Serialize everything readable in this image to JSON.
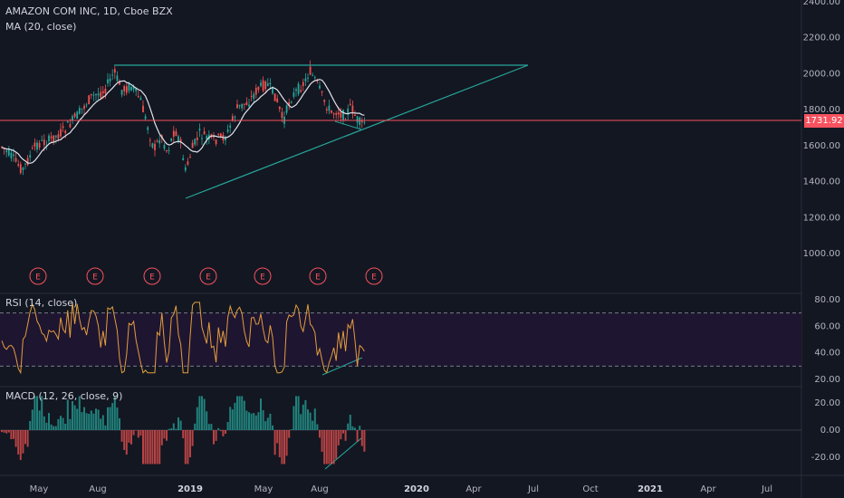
{
  "header": {
    "symbol_title": "AMAZON COM INC, 1D, Cboe BZX",
    "ma_label": "MA (20, close)"
  },
  "price_pane": {
    "y_ticks": [
      "2400.00",
      "2200.00",
      "2000.00",
      "1800.00",
      "1600.00",
      "1400.00",
      "1200.00",
      "1000.00"
    ],
    "y_values": [
      2400,
      2200,
      2000,
      1800,
      1600,
      1400,
      1200,
      1000
    ],
    "last_price": "1731.92",
    "last_price_value": 1731.92,
    "earnings_marker": "E",
    "earnings_count": 7
  },
  "rsi_pane": {
    "label": "RSI (14, close)",
    "y_ticks": [
      "80.00",
      "60.00",
      "40.00",
      "20.00"
    ],
    "y_values": [
      80,
      60,
      40,
      20
    ],
    "upper_band": 70,
    "lower_band": 30
  },
  "macd_pane": {
    "label": "MACD (12, 26, close, 9)",
    "y_ticks": [
      "20.00",
      "0.00",
      "-20.00"
    ],
    "y_values": [
      20,
      0,
      -20
    ]
  },
  "time_axis": {
    "labels": [
      "May",
      "Aug",
      "2019",
      "May",
      "Aug",
      "2020",
      "Apr",
      "Jul",
      "Oct",
      "2021",
      "Apr",
      "Jul"
    ]
  },
  "colors": {
    "background": "#131722",
    "up": "#26a69a",
    "down": "#ef5350",
    "ma": "#e0e3eb",
    "rsi": "#e39d3e",
    "trendline": "#26a69a",
    "last_price_line": "#f7525f",
    "rsi_band_fill": "#1e1530"
  }
}
